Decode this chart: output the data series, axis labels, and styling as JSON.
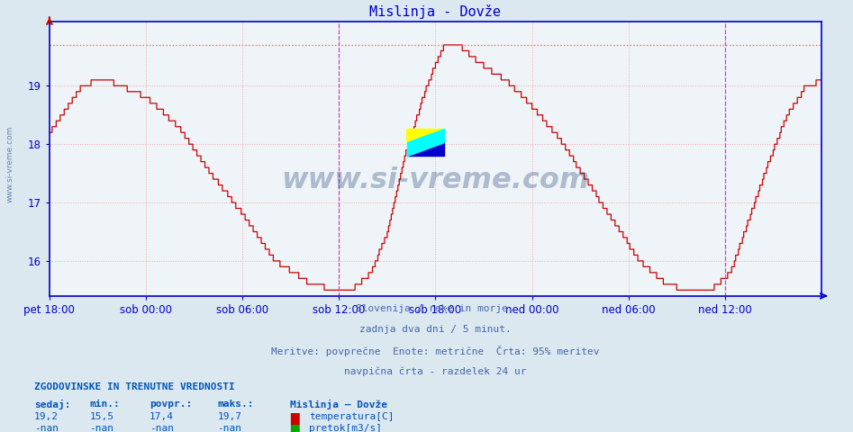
{
  "title": "Mislinja - Dovže",
  "title_color": "#0000cc",
  "bg_color": "#dce8f0",
  "plot_bg_color": "#eef4f8",
  "line_color": "#cc0000",
  "grid_color": "#ff9999",
  "hline_color": "#ff6666",
  "vline_color": "#cc44cc",
  "axis_color": "#0000cc",
  "tick_label_color": "#0000cc",
  "ylabel_values": [
    16,
    17,
    18,
    19
  ],
  "ymin": 15.4,
  "ymax": 20.1,
  "max_line_y": 19.7,
  "xtick_labels": [
    "pet 18:00",
    "sob 00:00",
    "sob 06:00",
    "sob 12:00",
    "sob 18:00",
    "ned 00:00",
    "ned 06:00",
    "ned 12:00"
  ],
  "xtick_positions": [
    0,
    72,
    144,
    216,
    288,
    360,
    432,
    504
  ],
  "total_points": 577,
  "vline_positions": [
    216,
    504
  ],
  "footer_lines": [
    "Slovenija / reke in morje.",
    "zadnja dva dni / 5 minut.",
    "Meritve: povprečne  Enote: metrične  Črta: 95% meritev",
    "navpična črta - razdelek 24 ur"
  ],
  "footer_color": "#4466aa",
  "legend_title": "Mislinja – Dovže",
  "legend_entries": [
    "temperatura[C]",
    "pretok[m3/s]"
  ],
  "legend_colors": [
    "#cc0000",
    "#00aa00"
  ],
  "stats_header": "ZGODOVINSKE IN TRENUTNE VREDNOSTI",
  "stats_cols": [
    "sedaj:",
    "min.:",
    "povpr.:",
    "maks.:"
  ],
  "stats_temp": [
    "19,2",
    "15,5",
    "17,4",
    "19,7"
  ],
  "stats_flow": [
    "-nan",
    "-nan",
    "-nan",
    "-nan"
  ],
  "watermark_text": "www.si-vreme.com",
  "watermark_color": "#1a3a6e",
  "sidebar_text": "www.si-vreme.com",
  "sidebar_color": "#6688aa"
}
